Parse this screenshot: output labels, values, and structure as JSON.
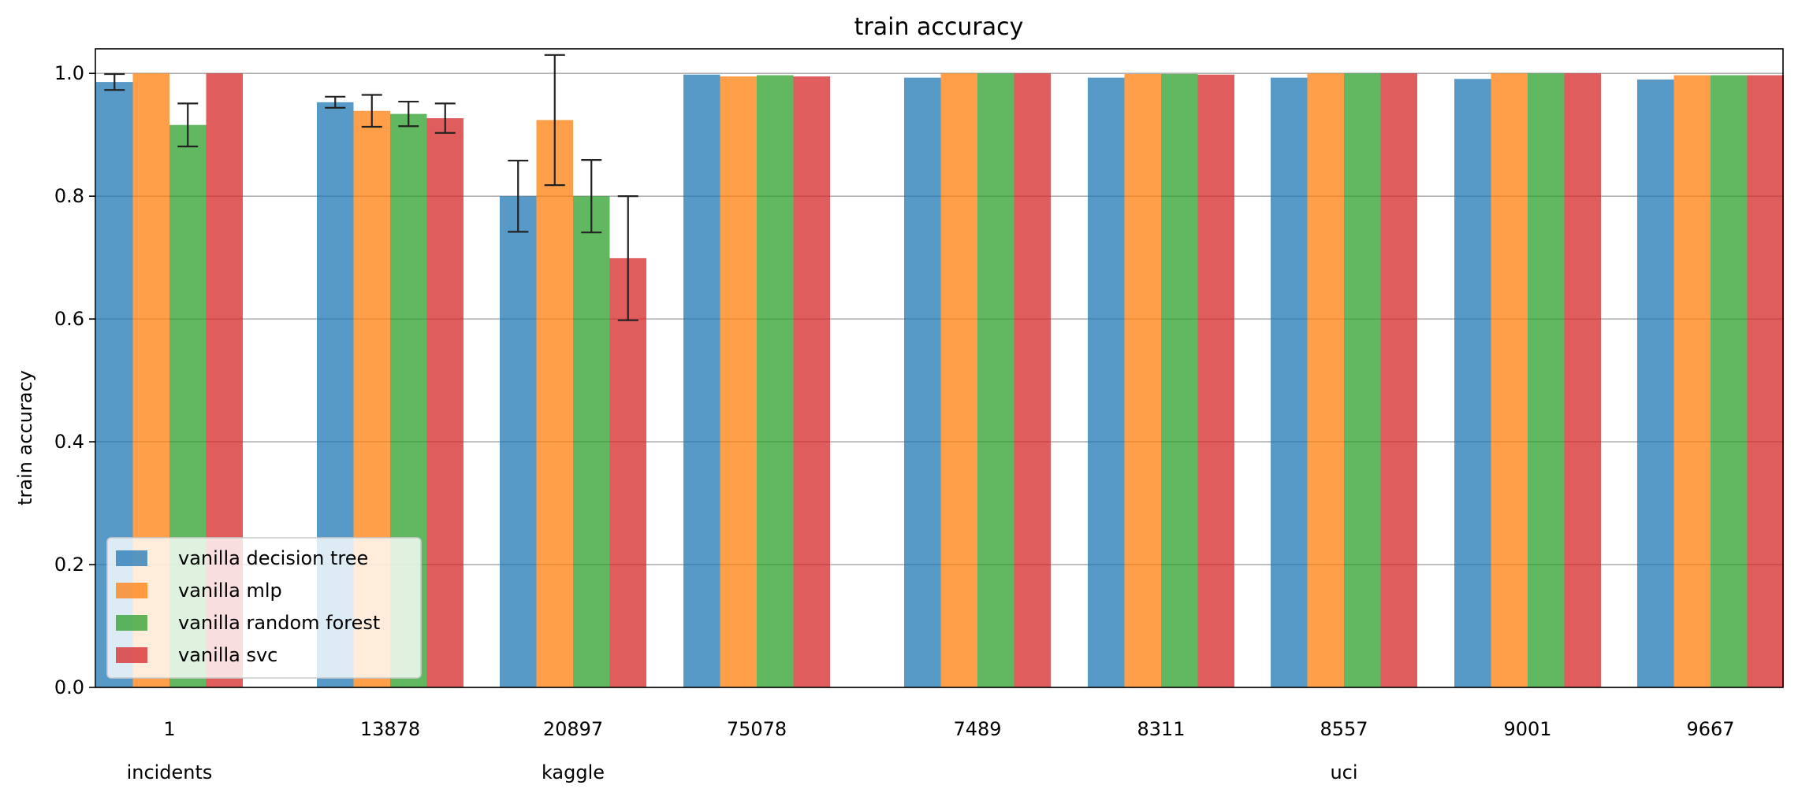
{
  "chart_data": {
    "type": "bar",
    "title": "train accuracy",
    "xlabel": "",
    "ylabel": "train accuracy",
    "ylim": [
      0,
      1.04
    ],
    "yticks": [
      0.0,
      0.2,
      0.4,
      0.6,
      0.8,
      1.0
    ],
    "ytick_labels": [
      "0.0",
      "0.2",
      "0.4",
      "0.6",
      "0.8",
      "1.0"
    ],
    "grid": "horizontal",
    "legend_position": "lower-left",
    "categories": [
      "1",
      "13878",
      "20897",
      "75078",
      "7489",
      "8311",
      "8557",
      "9001",
      "9667"
    ],
    "groups": [
      {
        "label": "incidents",
        "members": [
          "1"
        ]
      },
      {
        "label": "kaggle",
        "members": [
          "13878",
          "20897",
          "75078"
        ]
      },
      {
        "label": "uci",
        "members": [
          "7489",
          "8311",
          "8557",
          "9001",
          "9667"
        ]
      }
    ],
    "series": [
      {
        "name": "vanilla decision tree",
        "color": "#1f77b4",
        "values": [
          0.986,
          0.953,
          0.8,
          0.998,
          0.993,
          0.993,
          0.993,
          0.991,
          0.99
        ],
        "errors": [
          0.013,
          0.009,
          0.058,
          0,
          0,
          0,
          0,
          0,
          0
        ]
      },
      {
        "name": "vanilla mlp",
        "color": "#ff7f0e",
        "values": [
          1.0,
          0.939,
          0.924,
          0.995,
          1.0,
          0.999,
          1.0,
          1.0,
          0.997
        ],
        "errors": [
          0,
          0.026,
          0.106,
          0,
          0,
          0,
          0,
          0,
          0
        ]
      },
      {
        "name": "vanilla random forest",
        "color": "#2ca02c",
        "values": [
          0.916,
          0.934,
          0.8,
          0.997,
          1.0,
          0.999,
          1.0,
          1.0,
          0.997
        ],
        "errors": [
          0.035,
          0.02,
          0.059,
          0,
          0,
          0,
          0,
          0,
          0
        ]
      },
      {
        "name": "vanilla svc",
        "color": "#d62728",
        "values": [
          1.0,
          0.927,
          0.699,
          0.995,
          1.0,
          0.998,
          1.0,
          1.0,
          0.997
        ],
        "errors": [
          0,
          0.024,
          0.101,
          0,
          0,
          0,
          0,
          0,
          0
        ]
      }
    ]
  }
}
